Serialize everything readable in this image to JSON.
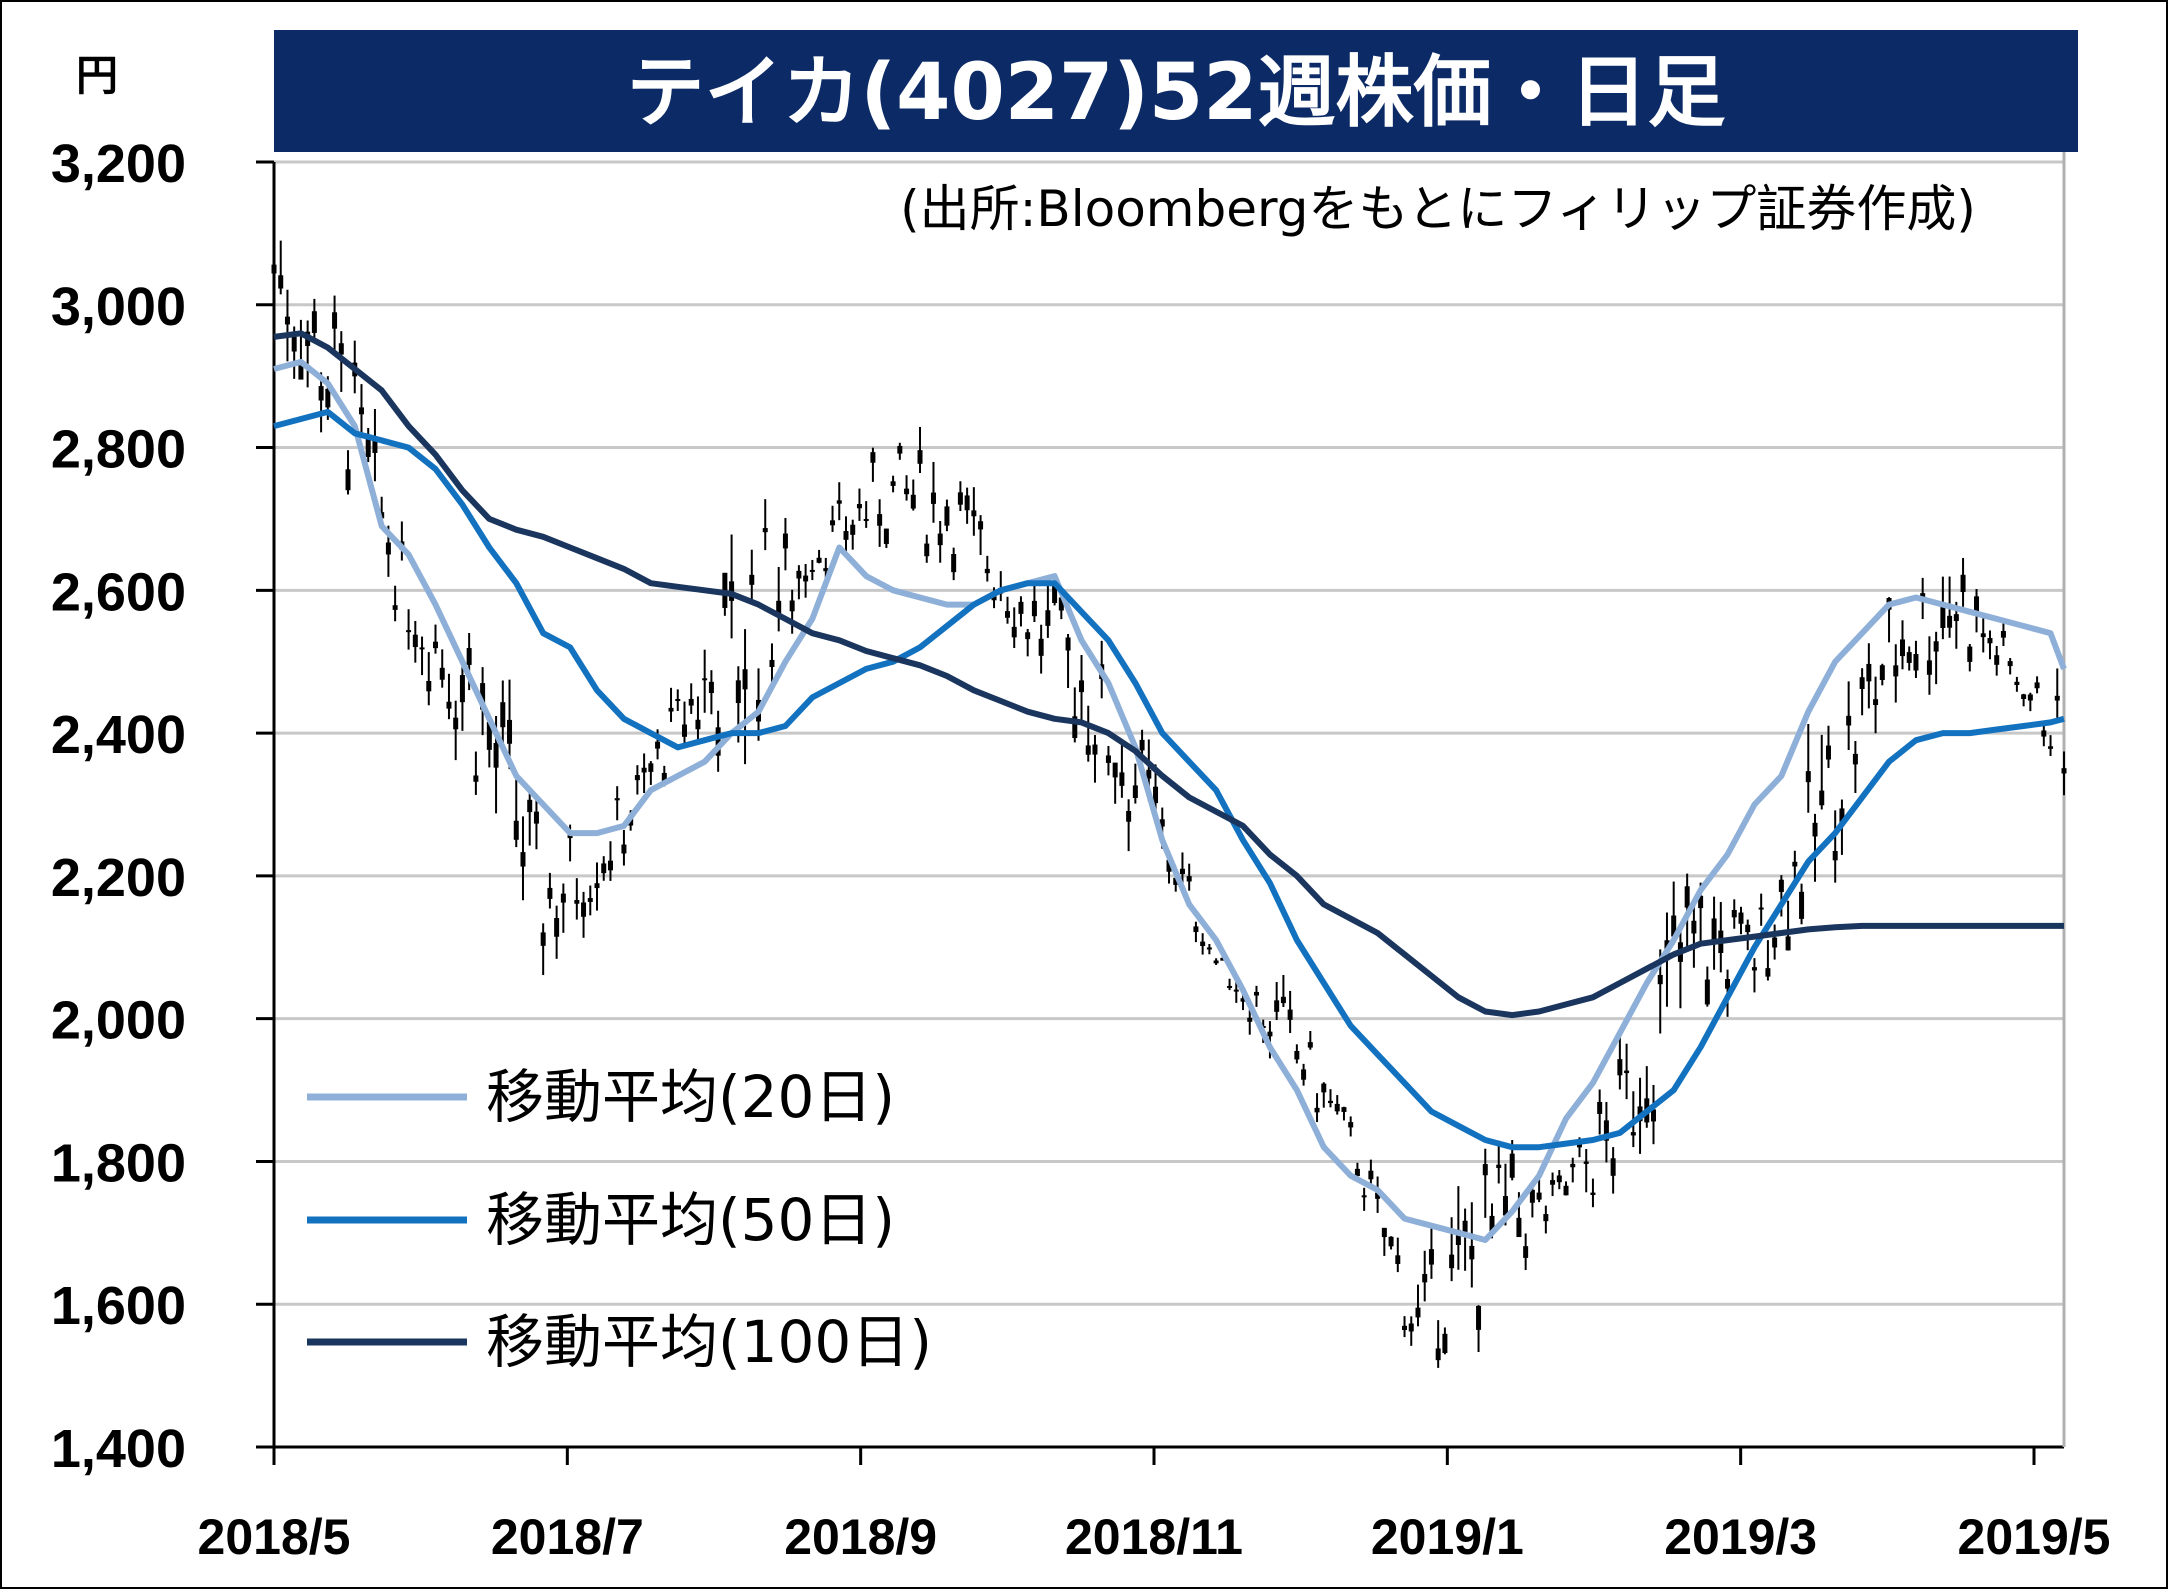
{
  "chart_data": {
    "type": "line",
    "title": "テイカ(4027)52週株価・日足",
    "source": "(出所:Bloombergをもとにフィリップ証券作成)",
    "unit": "円",
    "ylim": [
      1400,
      3200
    ],
    "y_ticks": [
      1400,
      1600,
      1800,
      2000,
      2200,
      2400,
      2600,
      2800,
      3000,
      3200
    ],
    "y_tick_labels": [
      "1,400",
      "1,600",
      "1,800",
      "2,000",
      "2,200",
      "2,400",
      "2,600",
      "2,800",
      "3,000",
      "3,200"
    ],
    "x_tick_labels": [
      "2018/5",
      "2018/7",
      "2018/9",
      "2018/11",
      "2019/1",
      "2019/3",
      "2019/5"
    ],
    "grid": true,
    "legend_position": "bottom-left",
    "colors": {
      "title_bg": "#0b2a66",
      "ma20": "#8eb0d8",
      "ma50": "#1272c0",
      "ma100": "#1b365e",
      "candle": "#000000",
      "grid": "#c8c8c8"
    },
    "price_range": {
      "x": [
        0,
        10,
        20,
        30,
        40,
        50,
        60,
        70,
        80,
        90,
        100,
        110,
        120,
        130,
        140,
        150,
        160,
        170,
        180,
        190,
        200,
        210,
        220,
        230,
        240,
        250,
        260,
        266
      ],
      "low": [
        2900,
        2680,
        2500,
        2230,
        2000,
        2160,
        2330,
        2250,
        2600,
        2620,
        2600,
        2500,
        2300,
        2170,
        2060,
        1880,
        1780,
        1460,
        1480,
        1680,
        1700,
        1890,
        2000,
        2080,
        2380,
        2430,
        2430,
        2280
      ],
      "high": [
        3200,
        3070,
        2660,
        2670,
        2320,
        2330,
        2490,
        2820,
        2700,
        2840,
        2840,
        2680,
        2630,
        2430,
        2100,
        2080,
        1880,
        1670,
        1900,
        1800,
        2000,
        2320,
        2180,
        2480,
        2650,
        2750,
        2500,
        2500
      ]
    },
    "series": [
      {
        "name": "移動平均(20日)",
        "x": [
          0,
          4,
          8,
          12,
          16,
          20,
          24,
          28,
          32,
          36,
          40,
          44,
          48,
          52,
          56,
          60,
          64,
          68,
          72,
          76,
          80,
          84,
          88,
          92,
          96,
          100,
          104,
          108,
          112,
          116,
          120,
          124,
          128,
          132,
          136,
          140,
          144,
          148,
          152,
          156,
          160,
          164,
          168,
          172,
          176,
          180,
          184,
          188,
          192,
          196,
          200,
          204,
          208,
          212,
          216,
          220,
          224,
          228,
          232,
          236,
          240,
          244,
          248,
          252,
          256,
          260,
          264,
          266
        ],
        "values": [
          2910,
          2920,
          2890,
          2830,
          2690,
          2650,
          2580,
          2500,
          2420,
          2340,
          2300,
          2260,
          2260,
          2270,
          2320,
          2340,
          2360,
          2400,
          2430,
          2500,
          2560,
          2660,
          2620,
          2600,
          2590,
          2580,
          2580,
          2600,
          2610,
          2620,
          2530,
          2470,
          2380,
          2250,
          2160,
          2110,
          2040,
          1960,
          1900,
          1820,
          1780,
          1760,
          1720,
          1710,
          1700,
          1690,
          1730,
          1780,
          1860,
          1910,
          1980,
          2050,
          2110,
          2180,
          2230,
          2300,
          2340,
          2430,
          2500,
          2540,
          2580,
          2590,
          2580,
          2570,
          2560,
          2550,
          2540,
          2490
        ]
      },
      {
        "name": "移動平均(50日)",
        "x": [
          0,
          4,
          8,
          12,
          16,
          20,
          24,
          28,
          32,
          36,
          40,
          44,
          48,
          52,
          56,
          60,
          64,
          68,
          72,
          76,
          80,
          84,
          88,
          92,
          96,
          100,
          104,
          108,
          112,
          116,
          120,
          124,
          128,
          132,
          136,
          140,
          144,
          148,
          152,
          156,
          160,
          164,
          168,
          172,
          176,
          180,
          184,
          188,
          192,
          196,
          200,
          204,
          208,
          212,
          216,
          220,
          224,
          228,
          232,
          236,
          240,
          244,
          248,
          252,
          256,
          260,
          264,
          266
        ],
        "values": [
          2830,
          2840,
          2850,
          2820,
          2810,
          2800,
          2770,
          2720,
          2660,
          2610,
          2540,
          2520,
          2460,
          2420,
          2400,
          2380,
          2390,
          2400,
          2400,
          2410,
          2450,
          2470,
          2490,
          2500,
          2520,
          2550,
          2580,
          2600,
          2610,
          2610,
          2570,
          2530,
          2470,
          2400,
          2360,
          2320,
          2250,
          2190,
          2110,
          2050,
          1990,
          1950,
          1910,
          1870,
          1850,
          1830,
          1820,
          1820,
          1825,
          1830,
          1840,
          1870,
          1900,
          1960,
          2030,
          2100,
          2160,
          2220,
          2260,
          2310,
          2360,
          2390,
          2400,
          2400,
          2405,
          2410,
          2415,
          2420
        ]
      },
      {
        "name": "移動平均(100日)",
        "x": [
          0,
          4,
          8,
          12,
          16,
          20,
          24,
          28,
          32,
          36,
          40,
          44,
          48,
          52,
          56,
          60,
          64,
          68,
          72,
          76,
          80,
          84,
          88,
          92,
          96,
          100,
          104,
          108,
          112,
          116,
          120,
          124,
          128,
          132,
          136,
          140,
          144,
          148,
          152,
          156,
          160,
          164,
          168,
          172,
          176,
          180,
          184,
          188,
          192,
          196,
          200,
          204,
          208,
          212,
          216,
          220,
          224,
          228,
          232,
          236,
          240,
          244,
          248,
          252,
          256,
          260,
          264,
          266
        ],
        "values": [
          2955,
          2960,
          2940,
          2910,
          2880,
          2830,
          2790,
          2740,
          2700,
          2685,
          2675,
          2660,
          2645,
          2630,
          2610,
          2605,
          2600,
          2595,
          2580,
          2560,
          2540,
          2530,
          2515,
          2505,
          2495,
          2480,
          2460,
          2445,
          2430,
          2420,
          2415,
          2400,
          2375,
          2340,
          2310,
          2290,
          2270,
          2230,
          2200,
          2160,
          2140,
          2120,
          2090,
          2060,
          2030,
          2010,
          2005,
          2010,
          2020,
          2030,
          2050,
          2070,
          2090,
          2105,
          2110,
          2115,
          2120,
          2125,
          2128,
          2130,
          2130,
          2130,
          2130,
          2130,
          2130,
          2130,
          2130,
          2130
        ]
      }
    ]
  }
}
